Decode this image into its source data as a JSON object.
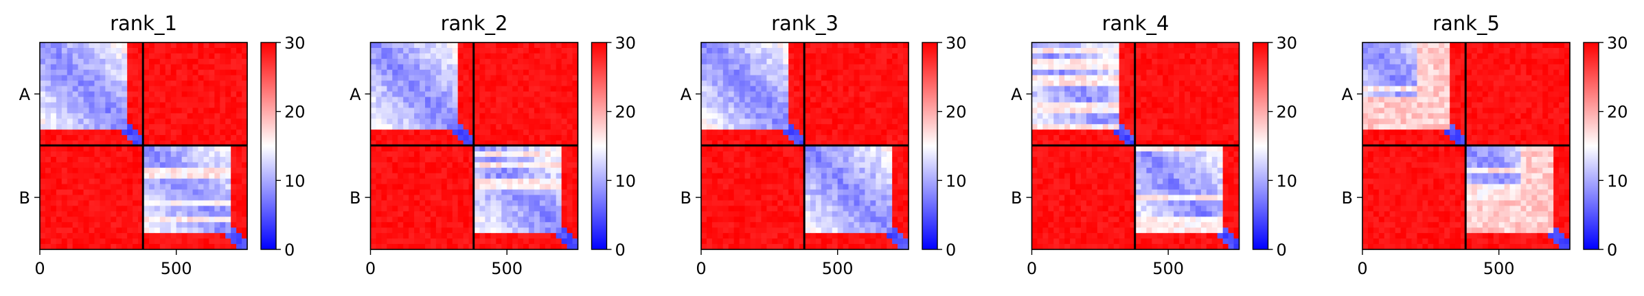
{
  "chart_data": [
    {
      "type": "heatmap",
      "title": "rank_1",
      "xlabel": "",
      "ylabel": "",
      "x_ticks": [
        0,
        500
      ],
      "xlim": [
        0,
        760
      ],
      "chain_break": 378,
      "y_tick_labels": [
        "A",
        "B"
      ],
      "colorbar": {
        "ticks": [
          0,
          10,
          20,
          30
        ],
        "range": [
          0,
          30
        ],
        "colors": [
          "#0000ff",
          "#ffffff",
          "#ff0000"
        ]
      },
      "blocks": [
        {
          "chain": "A",
          "span": [
            0,
            378
          ],
          "low_error_end": 325,
          "value_low": 6,
          "value_high": 30,
          "white_bands": false
        },
        {
          "chain": "B",
          "span": [
            378,
            760
          ],
          "low_error_end": 700,
          "value_low": 6,
          "value_high": 30,
          "white_bands": true
        }
      ]
    },
    {
      "type": "heatmap",
      "title": "rank_2",
      "xlabel": "",
      "ylabel": "",
      "x_ticks": [
        0,
        500
      ],
      "xlim": [
        0,
        760
      ],
      "chain_break": 378,
      "y_tick_labels": [
        "A",
        "B"
      ],
      "colorbar": {
        "ticks": [
          0,
          10,
          20,
          30
        ],
        "range": [
          0,
          30
        ],
        "colors": [
          "#0000ff",
          "#ffffff",
          "#ff0000"
        ]
      },
      "blocks": [
        {
          "chain": "A",
          "span": [
            0,
            378
          ],
          "low_error_end": 325,
          "value_low": 6,
          "value_high": 30,
          "white_bands": false
        },
        {
          "chain": "B",
          "span": [
            378,
            760
          ],
          "low_error_end": 700,
          "value_low": 6,
          "value_high": 30,
          "white_bands": true
        }
      ]
    },
    {
      "type": "heatmap",
      "title": "rank_3",
      "xlabel": "",
      "ylabel": "",
      "x_ticks": [
        0,
        500
      ],
      "xlim": [
        0,
        760
      ],
      "chain_break": 378,
      "y_tick_labels": [
        "A",
        "B"
      ],
      "colorbar": {
        "ticks": [
          0,
          10,
          20,
          30
        ],
        "range": [
          0,
          30
        ],
        "colors": [
          "#0000ff",
          "#ffffff",
          "#ff0000"
        ]
      },
      "blocks": [
        {
          "chain": "A",
          "span": [
            0,
            378
          ],
          "low_error_end": 325,
          "value_low": 6,
          "value_high": 30,
          "white_bands": false
        },
        {
          "chain": "B",
          "span": [
            378,
            760
          ],
          "low_error_end": 700,
          "value_low": 6,
          "value_high": 30,
          "white_bands": false
        }
      ]
    },
    {
      "type": "heatmap",
      "title": "rank_4",
      "xlabel": "",
      "ylabel": "",
      "x_ticks": [
        0,
        500
      ],
      "xlim": [
        0,
        760
      ],
      "chain_break": 378,
      "y_tick_labels": [
        "A",
        "B"
      ],
      "colorbar": {
        "ticks": [
          0,
          10,
          20,
          30
        ],
        "range": [
          0,
          30
        ],
        "colors": [
          "#0000ff",
          "#ffffff",
          "#ff0000"
        ]
      },
      "blocks": [
        {
          "chain": "A",
          "span": [
            0,
            378
          ],
          "low_error_end": 325,
          "value_low": 6,
          "value_high": 30,
          "white_bands": true
        },
        {
          "chain": "B",
          "span": [
            378,
            760
          ],
          "low_error_end": 700,
          "value_low": 6,
          "value_high": 30,
          "white_bands": true
        }
      ]
    },
    {
      "type": "heatmap",
      "title": "rank_5",
      "xlabel": "",
      "ylabel": "",
      "x_ticks": [
        0,
        500
      ],
      "xlim": [
        0,
        760
      ],
      "chain_break": 378,
      "y_tick_labels": [
        "A",
        "B"
      ],
      "colorbar": {
        "ticks": [
          0,
          10,
          20,
          30
        ],
        "range": [
          0,
          30
        ],
        "colors": [
          "#0000ff",
          "#ffffff",
          "#ff0000"
        ]
      },
      "blocks": [
        {
          "chain": "A",
          "span": [
            0,
            378
          ],
          "low_error_end": 325,
          "value_low": 6,
          "value_high": 30,
          "white_bands": true,
          "pale_region": [
            200,
            325
          ]
        },
        {
          "chain": "B",
          "span": [
            378,
            760
          ],
          "low_error_end": 700,
          "value_low": 6,
          "value_high": 30,
          "white_bands": true,
          "pale_region": [
            580,
            700
          ]
        }
      ]
    }
  ]
}
